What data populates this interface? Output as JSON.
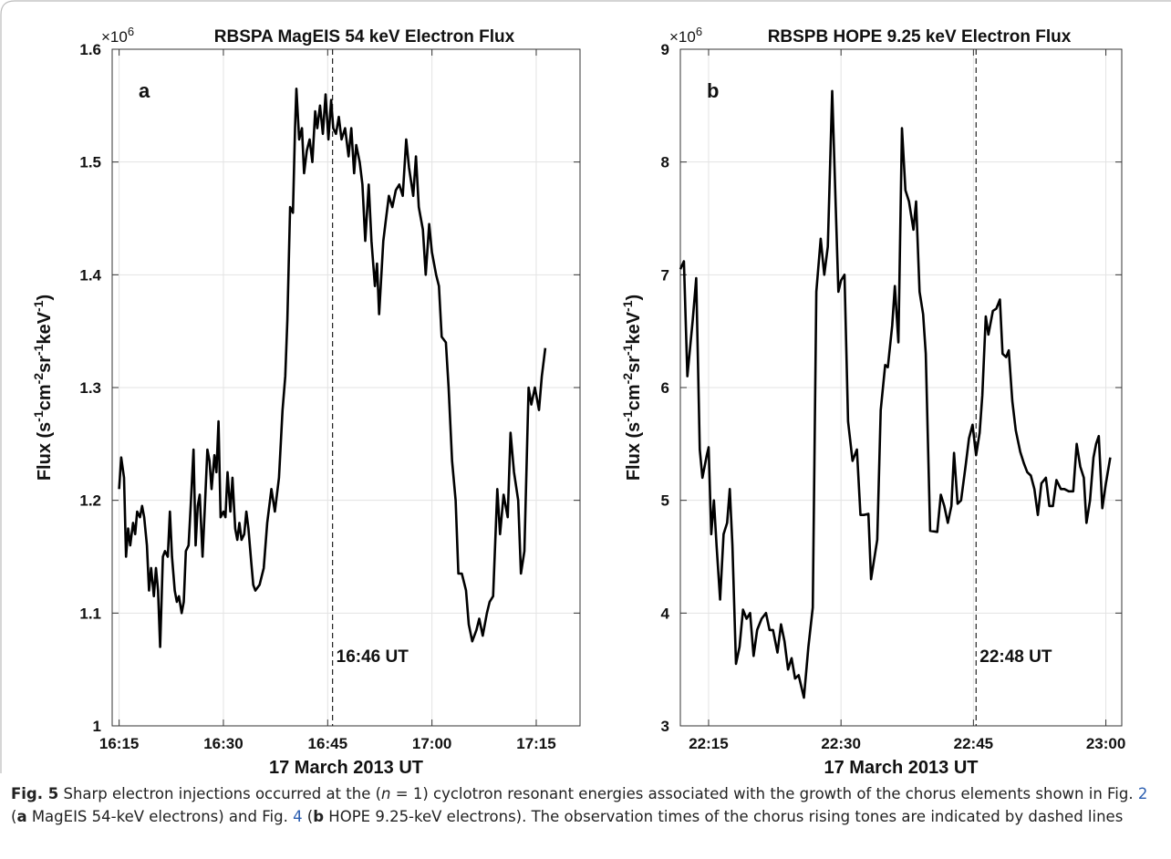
{
  "chart_data": [
    {
      "type": "line",
      "title": "RBSPA MagEIS 54 keV Electron Flux",
      "panel_label": "a",
      "x_label": "17 March 2013 UT",
      "y_label": [
        {
          "text": "Flux (s",
          "sup": false
        },
        {
          "text": "-1",
          "sup": true
        },
        {
          "text": "cm",
          "sup": false
        },
        {
          "text": "-2",
          "sup": true
        },
        {
          "text": "sr",
          "sup": false
        },
        {
          "text": "-1",
          "sup": true
        },
        {
          "text": "keV",
          "sup": false
        },
        {
          "text": "-1",
          "sup": true
        },
        {
          "text": ")",
          "sup": false
        }
      ],
      "y_multiplier": {
        "base": "×10",
        "exponent": "6"
      },
      "color": "#000000",
      "grid": true,
      "xlim": [
        974,
        1041.3
      ],
      "ylim": [
        1,
        1.6
      ],
      "xticks": [
        {
          "value": 975,
          "label": "16:15"
        },
        {
          "value": 990,
          "label": "16:30"
        },
        {
          "value": 1005,
          "label": "16:45"
        },
        {
          "value": 1020,
          "label": "17:00"
        },
        {
          "value": 1035,
          "label": "17:15"
        }
      ],
      "yticks": [
        1,
        1.1,
        1.2,
        1.3,
        1.4,
        1.5,
        1.6
      ],
      "vline": {
        "x": 1005.7,
        "label": "16:46 UT"
      },
      "x": [
        975,
        975.3,
        975.7,
        976,
        976.3,
        976.6,
        977,
        977.3,
        977.6,
        978,
        978.3,
        978.6,
        979,
        979.3,
        979.6,
        980,
        980.3,
        980.6,
        980.9,
        981.3,
        981.6,
        982,
        982.3,
        982.6,
        983,
        983.3,
        983.6,
        984,
        984.3,
        984.6,
        985,
        985.3,
        985.7,
        986,
        986.3,
        986.6,
        987,
        987.3,
        987.7,
        988,
        988.3,
        988.7,
        989,
        989.3,
        989.6,
        990,
        990.3,
        990.6,
        991,
        991.3,
        991.7,
        992,
        992.3,
        992.6,
        993,
        993.3,
        993.6,
        994,
        994.3,
        994.6,
        995.2,
        995.8,
        996.3,
        996.9,
        997.4,
        998,
        998.5,
        998.9,
        999.2,
        999.6,
        1000,
        1000.3,
        1000.5,
        1000.9,
        1001.3,
        1001.6,
        1002,
        1002.4,
        1002.8,
        1003.2,
        1003.5,
        1003.9,
        1004.3,
        1004.7,
        1005.1,
        1005.5,
        1005.8,
        1006.2,
        1006.6,
        1007,
        1007.5,
        1008,
        1008.4,
        1008.8,
        1009.1,
        1009.6,
        1010,
        1010.4,
        1010.9,
        1011.3,
        1011.8,
        1012.1,
        1012.4,
        1013,
        1013.4,
        1013.8,
        1014.3,
        1014.8,
        1015.3,
        1015.8,
        1016.3,
        1016.7,
        1017.3,
        1017.7,
        1018.1,
        1018.7,
        1019.1,
        1019.6,
        1020,
        1020.6,
        1021,
        1021.4,
        1022,
        1022.4,
        1022.9,
        1023.4,
        1023.8,
        1024.3,
        1024.9,
        1025.3,
        1025.8,
        1026.4,
        1026.8,
        1027.3,
        1027.9,
        1028.3,
        1028.8,
        1029.4,
        1029.8,
        1030.3,
        1030.9,
        1031.3,
        1031.8,
        1032.4,
        1032.8,
        1033.3,
        1033.9,
        1034.3,
        1034.8,
        1035.4,
        1035.8,
        1036.3
      ],
      "values": [
        1.21,
        1.238,
        1.22,
        1.15,
        1.175,
        1.16,
        1.18,
        1.17,
        1.19,
        1.185,
        1.195,
        1.185,
        1.16,
        1.12,
        1.14,
        1.115,
        1.14,
        1.12,
        1.07,
        1.15,
        1.155,
        1.15,
        1.19,
        1.15,
        1.12,
        1.11,
        1.115,
        1.1,
        1.11,
        1.155,
        1.16,
        1.195,
        1.245,
        1.16,
        1.195,
        1.205,
        1.15,
        1.19,
        1.245,
        1.235,
        1.21,
        1.24,
        1.225,
        1.27,
        1.185,
        1.19,
        1.185,
        1.225,
        1.19,
        1.22,
        1.175,
        1.165,
        1.18,
        1.165,
        1.17,
        1.19,
        1.175,
        1.145,
        1.125,
        1.12,
        1.125,
        1.14,
        1.18,
        1.21,
        1.19,
        1.22,
        1.28,
        1.31,
        1.36,
        1.46,
        1.455,
        1.53,
        1.565,
        1.52,
        1.53,
        1.49,
        1.51,
        1.52,
        1.5,
        1.545,
        1.53,
        1.55,
        1.525,
        1.56,
        1.52,
        1.555,
        1.53,
        1.525,
        1.54,
        1.52,
        1.53,
        1.505,
        1.53,
        1.49,
        1.515,
        1.5,
        1.48,
        1.43,
        1.48,
        1.43,
        1.39,
        1.41,
        1.365,
        1.43,
        1.45,
        1.47,
        1.46,
        1.475,
        1.48,
        1.47,
        1.52,
        1.495,
        1.47,
        1.505,
        1.46,
        1.44,
        1.4,
        1.445,
        1.42,
        1.4,
        1.39,
        1.345,
        1.34,
        1.3,
        1.235,
        1.2,
        1.135,
        1.135,
        1.12,
        1.09,
        1.075,
        1.085,
        1.095,
        1.08,
        1.1,
        1.11,
        1.115,
        1.21,
        1.17,
        1.205,
        1.185,
        1.26,
        1.225,
        1.2,
        1.135,
        1.155,
        1.3,
        1.285,
        1.3,
        1.28,
        1.31,
        1.335
      ]
    },
    {
      "type": "line",
      "title": "RBSPB HOPE 9.25 keV Electron Flux",
      "panel_label": "b",
      "x_label": "17 March 2013 UT",
      "y_label": [
        {
          "text": "Flux (s",
          "sup": false
        },
        {
          "text": "-1",
          "sup": true
        },
        {
          "text": "cm",
          "sup": false
        },
        {
          "text": "-2",
          "sup": true
        },
        {
          "text": "sr",
          "sup": false
        },
        {
          "text": "-1",
          "sup": true
        },
        {
          "text": "keV",
          "sup": false
        },
        {
          "text": "-1",
          "sup": true
        },
        {
          "text": ")",
          "sup": false
        }
      ],
      "y_multiplier": {
        "base": "×10",
        "exponent": "6"
      },
      "color": "#000000",
      "grid": true,
      "xlim": [
        1331.8,
        1381.8
      ],
      "ylim": [
        3,
        9
      ],
      "xticks": [
        {
          "value": 1335,
          "label": "22:15"
        },
        {
          "value": 1350,
          "label": "22:30"
        },
        {
          "value": 1365,
          "label": "22:45"
        },
        {
          "value": 1380,
          "label": "23:00"
        }
      ],
      "yticks": [
        3,
        4,
        5,
        6,
        7,
        8,
        9
      ],
      "vline": {
        "x": 1365.3,
        "label": "22:48 UT"
      },
      "x": [
        1331.8,
        1332.2,
        1332.6,
        1333.2,
        1333.6,
        1334,
        1334.3,
        1334.8,
        1335,
        1335.3,
        1335.6,
        1335.9,
        1336.3,
        1336.7,
        1337.1,
        1337.4,
        1337.7,
        1338.1,
        1338.5,
        1338.9,
        1339.3,
        1339.7,
        1340.1,
        1340.5,
        1341,
        1341.5,
        1341.9,
        1342.3,
        1342.8,
        1343.2,
        1343.6,
        1344,
        1344.4,
        1344.8,
        1345.2,
        1345.8,
        1346.3,
        1346.8,
        1347.2,
        1347.7,
        1348.1,
        1348.5,
        1349,
        1349.4,
        1349.7,
        1350,
        1350.4,
        1350.8,
        1351.3,
        1351.8,
        1352.2,
        1352.6,
        1353.1,
        1353.4,
        1353.7,
        1354.1,
        1354.5,
        1355,
        1355.3,
        1355.8,
        1356.1,
        1356.5,
        1356.9,
        1357.3,
        1357.7,
        1358.2,
        1358.5,
        1358.9,
        1359.3,
        1359.6,
        1360.1,
        1360.9,
        1361.3,
        1361.7,
        1362.1,
        1362.5,
        1362.8,
        1363.2,
        1363.6,
        1364.1,
        1364.5,
        1364.9,
        1365.3,
        1365.7,
        1366,
        1366.4,
        1366.7,
        1367.2,
        1367.6,
        1368,
        1368.3,
        1368.7,
        1369,
        1369.4,
        1369.8,
        1370.3,
        1370.7,
        1371.1,
        1371.5,
        1371.9,
        1372.3,
        1372.7,
        1373.2,
        1373.6,
        1374,
        1374.4,
        1374.9,
        1375.3,
        1375.8,
        1376.3,
        1376.7,
        1377.1,
        1377.5,
        1377.8,
        1378.2,
        1378.6,
        1378.9,
        1379.2,
        1379.6,
        1380,
        1380.5
      ],
      "values": [
        7.05,
        7.12,
        6.1,
        6.6,
        6.97,
        5.45,
        5.2,
        5.4,
        5.47,
        4.7,
        5.0,
        4.6,
        4.12,
        4.7,
        4.8,
        5.1,
        4.6,
        3.55,
        3.7,
        4.03,
        3.95,
        4.0,
        3.62,
        3.85,
        3.95,
        4.0,
        3.85,
        3.85,
        3.65,
        3.9,
        3.75,
        3.5,
        3.6,
        3.42,
        3.45,
        3.25,
        3.7,
        4.05,
        6.85,
        7.32,
        7.0,
        7.25,
        8.63,
        7.6,
        6.85,
        6.95,
        7.0,
        5.7,
        5.35,
        5.45,
        4.87,
        4.87,
        4.88,
        4.3,
        4.45,
        4.65,
        5.8,
        6.2,
        6.18,
        6.55,
        6.9,
        6.4,
        8.3,
        7.75,
        7.65,
        7.4,
        7.65,
        6.85,
        6.65,
        6.3,
        4.73,
        4.72,
        5.05,
        4.95,
        4.8,
        4.95,
        5.42,
        4.97,
        5.0,
        5.3,
        5.55,
        5.67,
        5.4,
        5.6,
        5.93,
        6.63,
        6.47,
        6.68,
        6.7,
        6.78,
        6.3,
        6.27,
        6.33,
        5.88,
        5.62,
        5.43,
        5.33,
        5.25,
        5.22,
        5.1,
        4.87,
        5.15,
        5.2,
        4.95,
        4.95,
        5.18,
        5.1,
        5.1,
        5.08,
        5.08,
        5.5,
        5.3,
        5.2,
        4.8,
        5.0,
        5.38,
        5.5,
        5.57,
        4.93,
        5.15,
        5.38
      ]
    }
  ],
  "caption": [
    {
      "text": "Fig. 5",
      "style": "bold"
    },
    {
      "text": "  Sharp electron injections occurred at the (",
      "style": "plain"
    },
    {
      "text": "n",
      "style": "italic"
    },
    {
      "text": " = 1) cyclotron resonant energies associated with the growth of the chorus elements shown in Fig. ",
      "style": "plain"
    },
    {
      "text": "2",
      "style": "link"
    },
    {
      "text": " (",
      "style": "plain"
    },
    {
      "text": "a",
      "style": "bold"
    },
    {
      "text": " MagEIS 54-keV electrons) and Fig. ",
      "style": "plain"
    },
    {
      "text": "4",
      "style": "link"
    },
    {
      "text": " (",
      "style": "plain"
    },
    {
      "text": "b",
      "style": "bold"
    },
    {
      "text": " HOPE 9.25-keV electrons). The observation times of the chorus rising tones are indicated by dashed lines",
      "style": "plain"
    }
  ]
}
